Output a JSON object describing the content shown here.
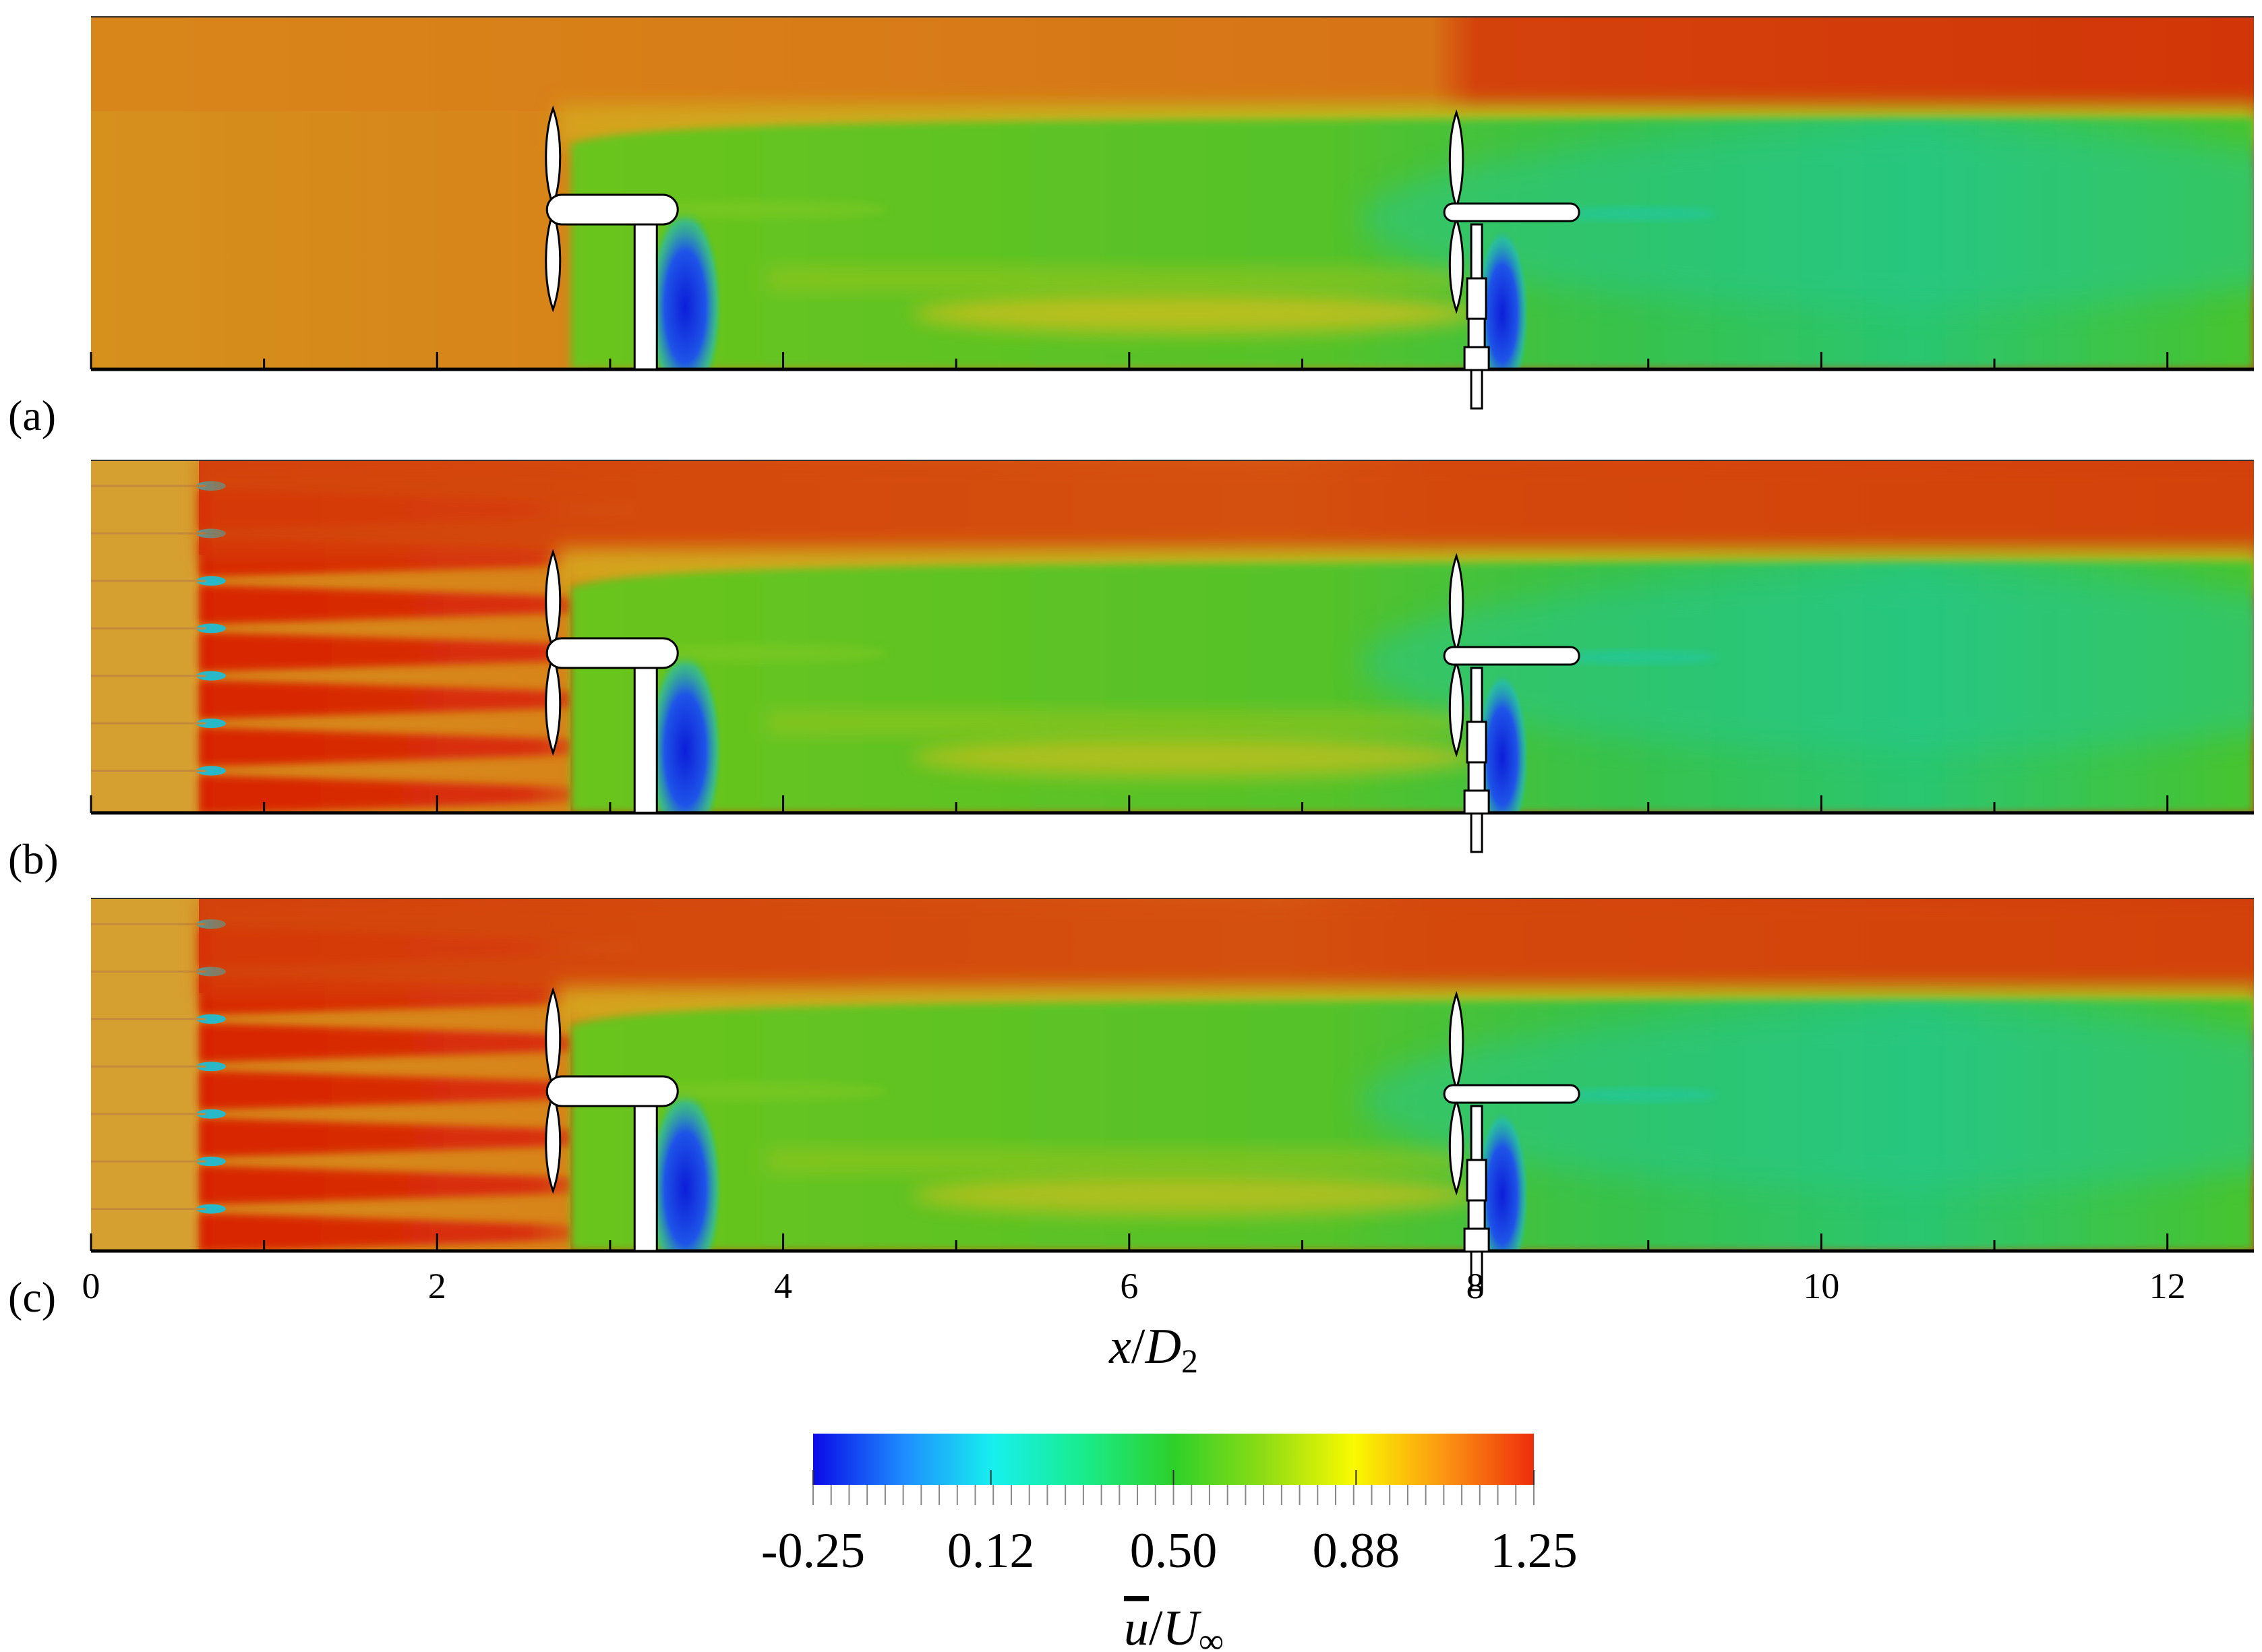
{
  "colors": {
    "freestream": "#dc7c14",
    "wake_green": "#52c41a",
    "deficit_blue": "#1a3cd8",
    "jet_red": "#d42a06"
  },
  "panels": [
    {
      "label": "(a)",
      "grid": false
    },
    {
      "label": "(b)",
      "grid": true
    },
    {
      "label": "(c)",
      "grid": true
    }
  ],
  "turbines": [
    {
      "name": "upstream",
      "x": 3.2
    },
    {
      "name": "downstream",
      "x": 8.0
    }
  ],
  "chart_data": {
    "type": "heatmap",
    "title": "",
    "xlabel": "x/D2",
    "xlabel_parts": {
      "var": "x",
      "sep": "/",
      "base": "D",
      "sub": "2"
    },
    "ylabel": "",
    "xlim": [
      0,
      12.5
    ],
    "xticks": [
      0,
      2,
      4,
      6,
      8,
      10,
      12
    ],
    "xtick_labels": [
      "0",
      "2",
      "4",
      "6",
      "8",
      "10",
      "12"
    ],
    "xtick_minor_step": 1,
    "quantity": "u/U∞",
    "colorbar": {
      "label": "u/U∞",
      "label_parts": {
        "num": "u",
        "sep": "/",
        "den": "U",
        "sub": "∞"
      },
      "range": [
        -0.25,
        1.25
      ],
      "tick_values": [
        -0.25,
        0.12,
        0.5,
        0.88,
        1.25
      ],
      "tick_labels": [
        "-0.25",
        "0.12",
        "0.50",
        "0.88",
        "1.25"
      ],
      "colors": [
        "#0a0ae6",
        "#1e8cff",
        "#17f0ee",
        "#19ec8c",
        "#2ed02a",
        "#8edc14",
        "#fafa00",
        "#fc9612",
        "#ee2d0c"
      ]
    }
  }
}
